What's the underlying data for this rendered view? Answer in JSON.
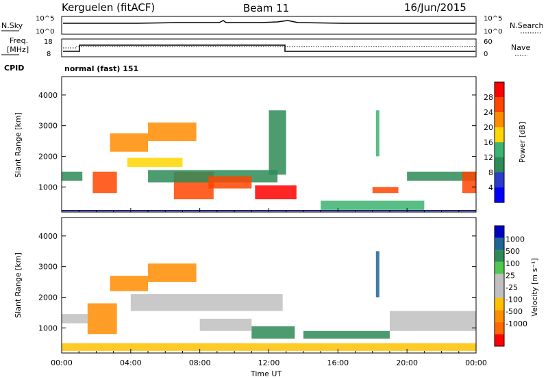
{
  "header": {
    "station": "Kerguelen (fitACF)",
    "beam": "Beam 11",
    "date": "16/Jun/2015"
  },
  "panels": {
    "nsky": {
      "label": "N.Sky",
      "left_ticks": [
        "10^5",
        "10^0"
      ],
      "right_ticks": [
        "10^5",
        "10^0"
      ],
      "right_label": "N.Search"
    },
    "freq": {
      "label_line1": "Freq.",
      "label_line2": "[MHz]",
      "left_ticks": [
        "18",
        "8"
      ],
      "right_ticks": [
        "60",
        "0"
      ],
      "right_label": "Nave"
    },
    "cpid": {
      "label": "CPID",
      "mode": "normal (fast) 151"
    }
  },
  "colors": {
    "power": [
      "#0000ff",
      "#2a3cc8",
      "#2e8b57",
      "#3cb371",
      "#ffd700",
      "#ff8c00",
      "#ff4500",
      "#ff0000"
    ],
    "velocity": [
      "#ff0000",
      "#ff6a00",
      "#ff8c00",
      "#ffc000",
      "#c0c0c0",
      "#c0c0c0",
      "#50c850",
      "#2e8b57",
      "#1e6496",
      "#0000c0"
    ]
  },
  "chart_data": [
    {
      "type": "heatmap",
      "name": "power-panel",
      "xlabel": "",
      "ylabel": "Slant Range [km]",
      "x_ticks": [
        "00:00",
        "04:00",
        "08:00",
        "12:00",
        "16:00",
        "20:00",
        "00:00"
      ],
      "y_ticks": [
        "1000",
        "2000",
        "3000",
        "4000"
      ],
      "xlim": [
        0,
        24
      ],
      "ylim": [
        180,
        4600
      ],
      "colorbar": {
        "label": "Power [dB]",
        "ticks": [
          "4",
          "8",
          "12",
          "16",
          "20",
          "24",
          "28"
        ],
        "range": [
          0,
          32
        ]
      },
      "regions": [
        {
          "t0": 0.0,
          "t1": 1.2,
          "r0": 1200,
          "r1": 1500,
          "value": 8
        },
        {
          "t0": 1.8,
          "t1": 3.2,
          "r0": 800,
          "r1": 1500,
          "value": 26
        },
        {
          "t0": 2.8,
          "t1": 5.0,
          "r0": 2150,
          "r1": 2750,
          "value": 22
        },
        {
          "t0": 3.8,
          "t1": 7.0,
          "r0": 1650,
          "r1": 1950,
          "value": 18
        },
        {
          "t0": 5.0,
          "t1": 7.8,
          "r0": 2500,
          "r1": 3100,
          "value": 20
        },
        {
          "t0": 6.5,
          "t1": 8.8,
          "r0": 600,
          "r1": 1500,
          "value": 27
        },
        {
          "t0": 5.0,
          "t1": 12.5,
          "r0": 1150,
          "r1": 1550,
          "value": 10
        },
        {
          "t0": 8.5,
          "t1": 11.0,
          "r0": 950,
          "r1": 1350,
          "value": 24
        },
        {
          "t0": 11.2,
          "t1": 13.6,
          "r0": 600,
          "r1": 1050,
          "value": 28
        },
        {
          "t0": 12.0,
          "t1": 13.0,
          "r0": 1400,
          "r1": 3500,
          "value": 8
        },
        {
          "t0": 15.0,
          "t1": 21.0,
          "r0": 250,
          "r1": 550,
          "value": 14
        },
        {
          "t0": 18.0,
          "t1": 19.5,
          "r0": 800,
          "r1": 1000,
          "value": 24
        },
        {
          "t0": 20.0,
          "t1": 24.0,
          "r0": 1200,
          "r1": 1500,
          "value": 8
        },
        {
          "t0": 23.2,
          "t1": 24.0,
          "r0": 800,
          "r1": 1500,
          "value": 26
        },
        {
          "t0": 18.2,
          "t1": 18.4,
          "r0": 2000,
          "r1": 3500,
          "value": 12
        }
      ]
    },
    {
      "type": "heatmap",
      "name": "velocity-panel",
      "xlabel": "Time UT",
      "ylabel": "Slant Range [km]",
      "x_ticks": [
        "00:00",
        "04:00",
        "08:00",
        "12:00",
        "16:00",
        "20:00",
        "00:00"
      ],
      "y_ticks": [
        "1000",
        "2000",
        "3000",
        "4000"
      ],
      "xlim": [
        0,
        24
      ],
      "ylim": [
        180,
        4600
      ],
      "colorbar": {
        "label": "Velocity [m s⁻¹]",
        "ticks": [
          "1000",
          "500",
          "100",
          "25",
          "-25",
          "-100",
          "-500",
          "-1000"
        ]
      },
      "regions": [
        {
          "t0": 0.0,
          "t1": 1.5,
          "r0": 1150,
          "r1": 1450,
          "value": 0
        },
        {
          "t0": 1.5,
          "t1": 3.2,
          "r0": 800,
          "r1": 1800,
          "value": -300
        },
        {
          "t0": 2.8,
          "t1": 5.0,
          "r0": 2200,
          "r1": 2700,
          "value": -400
        },
        {
          "t0": 4.0,
          "t1": 12.8,
          "r0": 1550,
          "r1": 2100,
          "value": 0
        },
        {
          "t0": 5.0,
          "t1": 7.8,
          "r0": 2500,
          "r1": 3100,
          "value": -300
        },
        {
          "t0": 8.0,
          "t1": 11.0,
          "r0": 900,
          "r1": 1300,
          "value": 0
        },
        {
          "t0": 11.0,
          "t1": 13.5,
          "r0": 650,
          "r1": 1050,
          "value": 150
        },
        {
          "t0": 14.0,
          "t1": 19.0,
          "r0": 650,
          "r1": 900,
          "value": 150
        },
        {
          "t0": 19.0,
          "t1": 24.0,
          "r0": 900,
          "r1": 1550,
          "value": 0
        },
        {
          "t0": 0.0,
          "t1": 24.0,
          "r0": 250,
          "r1": 500,
          "value": -80
        },
        {
          "t0": 18.2,
          "t1": 18.4,
          "r0": 2000,
          "r1": 3500,
          "value": 600
        }
      ]
    }
  ]
}
